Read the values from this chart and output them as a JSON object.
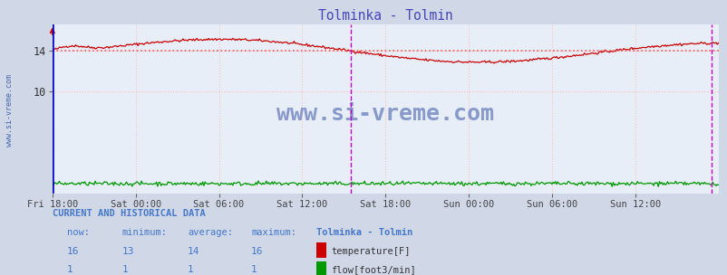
{
  "title": "Tolminka - Tolmin",
  "title_color": "#4444bb",
  "bg_color": "#d0d8e8",
  "plot_bg_color": "#ffffff",
  "plot_bg_color2": "#e8eef8",
  "x_tick_labels": [
    "Fri 18:00",
    "Sat 00:00",
    "Sat 06:00",
    "Sat 12:00",
    "Sat 18:00",
    "Sun 00:00",
    "Sun 06:00",
    "Sun 12:00"
  ],
  "x_tick_pos": [
    0,
    72,
    144,
    216,
    288,
    360,
    432,
    504
  ],
  "y_ticks": [
    10,
    14
  ],
  "ylim": [
    0,
    16.5
  ],
  "xlim": [
    0,
    576
  ],
  "grid_color": "#ffbbbb",
  "temp_color": "#cc0000",
  "flow_color": "#009900",
  "magenta_x": 258,
  "right_magenta_x": 570,
  "avg_line_y": 14,
  "avg_line_color": "#ff5555",
  "watermark": "www.si-vreme.com",
  "watermark_color": "#8899cc",
  "sidebar_text": "www.si-vreme.com",
  "sidebar_color": "#4466aa",
  "left_border_color": "#0000cc",
  "bottom_title": "CURRENT AND HISTORICAL DATA",
  "bottom_color": "#4477cc",
  "table_headers": [
    "now:",
    "minimum:",
    "average:",
    "maximum:",
    "Tolminka - Tolmin"
  ],
  "table_row1_vals": [
    "16",
    "13",
    "14",
    "16"
  ],
  "table_row2_vals": [
    "1",
    "1",
    "1",
    "1"
  ],
  "legend_temp": "temperature[F]",
  "legend_flow": "flow[foot3/min]",
  "n_points": 577,
  "temp_seed": 42,
  "temp_base": 14.0,
  "temp_amp1": 0.85,
  "temp_amp2": 0.35,
  "temp_freq1": 1.4,
  "temp_freq2": 0.75,
  "temp_phase1": -0.8,
  "temp_phase2": 1.2,
  "temp_init_bump": 0.55,
  "temp_noise": 0.06
}
